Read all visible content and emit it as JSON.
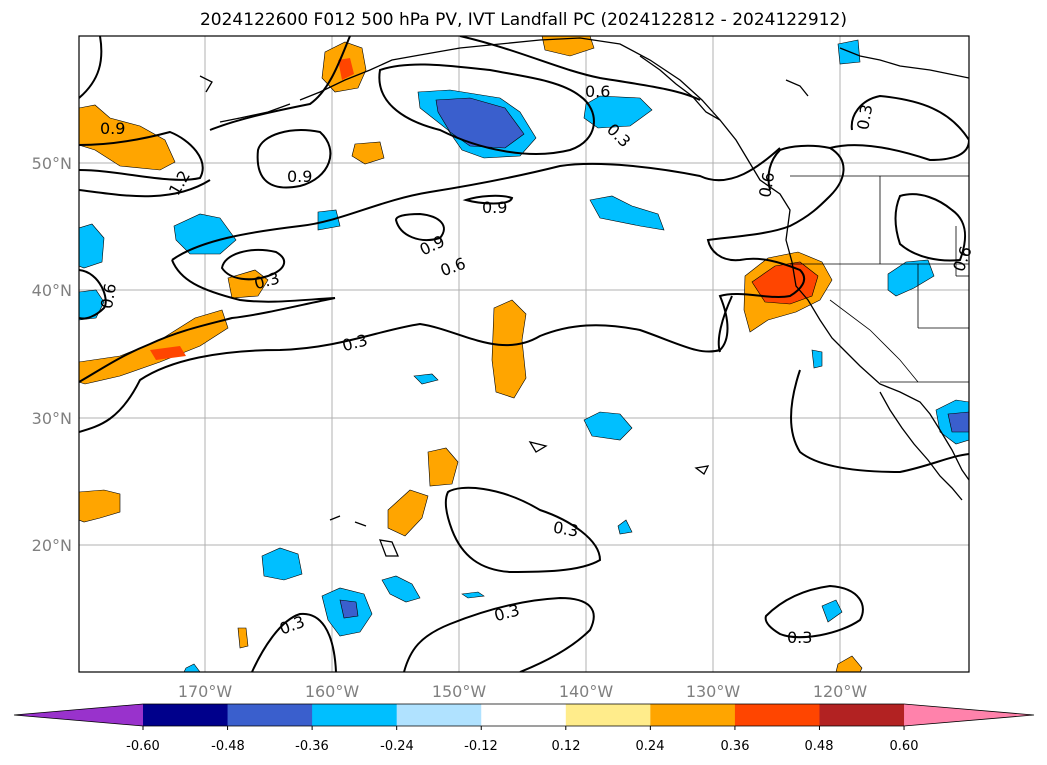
{
  "title": "2024122600 F012 500 hPa PV, IVT Landfall PC (2024122812 - 2024122912)",
  "map": {
    "lat_ticks": [
      "50°N",
      "40°N",
      "30°N",
      "20°N"
    ],
    "lon_ticks": [
      "170°W",
      "160°W",
      "150°W",
      "140°W",
      "130°W",
      "120°W"
    ],
    "contour_labels": [
      "0.9",
      "1.2",
      "0.9",
      "0.6",
      "0.3",
      "0.9",
      "0.9",
      "0.6",
      "0.6",
      "0.3",
      "0.6",
      "0.3",
      "0.3",
      "0.3",
      "0.3",
      "0.3",
      "0.3",
      "0.6"
    ],
    "grid": true
  },
  "colorbar": {
    "levels": [
      "-0.60",
      "-0.48",
      "-0.36",
      "-0.24",
      "-0.12",
      "0.12",
      "0.24",
      "0.36",
      "0.48",
      "0.60"
    ],
    "colors": [
      "#9932cc",
      "#00008b",
      "#3a5fcd",
      "#00bfff",
      "#b0e2ff",
      "#ffffff",
      "#ffec8b",
      "#ffa500",
      "#ff4500",
      "#b22222",
      "#ff82ab"
    ]
  }
}
